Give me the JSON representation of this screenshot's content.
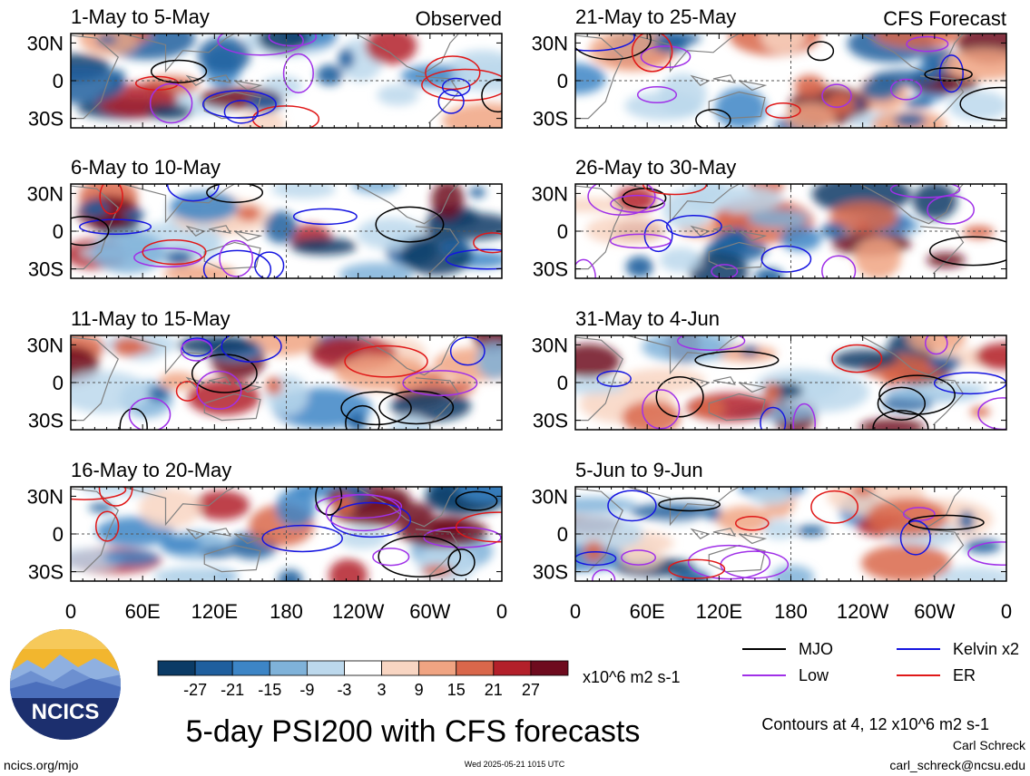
{
  "figure": {
    "main_title": "5-day PSI200 with CFS forecasts",
    "observed_label": "Observed",
    "forecast_label": "CFS Forecast",
    "url": "ncics.org/mjo",
    "timestamp": "Wed 2025-05-21 1015 UTC",
    "author": "Carl Schreck",
    "email": "carl_schreck@ncsu.edu",
    "contour_note": "Contours at 4, 12 x10^6 m2 s-1",
    "logo_text": "NCICS"
  },
  "colorbar": {
    "unit": "x10^6 m2 s-1",
    "ticks": [
      "-27",
      "-21",
      "-15",
      "-9",
      "-3",
      "3",
      "9",
      "15",
      "21",
      "27"
    ],
    "colors": [
      "#0b3b66",
      "#1f5f9e",
      "#3d85c6",
      "#7fb2d9",
      "#bcd8ec",
      "#ffffff",
      "#f8d5c2",
      "#f0a482",
      "#d9674b",
      "#b3202a",
      "#6e0b1e"
    ]
  },
  "legend": [
    {
      "label": "MJO",
      "color": "#000000"
    },
    {
      "label": "Kelvin x2",
      "color": "#1515e0"
    },
    {
      "label": "Low",
      "color": "#a030e8"
    },
    {
      "label": "ER",
      "color": "#e01818"
    }
  ],
  "chart_data": {
    "type": "heatmap",
    "variable": "5-day PSI200",
    "lat_ticks": [
      "30N",
      "0",
      "30S"
    ],
    "lon_ticks": [
      "0",
      "60E",
      "120E",
      "180",
      "120W",
      "60W",
      "0"
    ],
    "contour_levels": [
      4,
      12
    ],
    "panels": [
      {
        "column": "Observed",
        "label": "1-May to 5-May"
      },
      {
        "column": "Observed",
        "label": "6-May to 10-May"
      },
      {
        "column": "Observed",
        "label": "11-May to 15-May"
      },
      {
        "column": "Observed",
        "label": "16-May to 20-May"
      },
      {
        "column": "CFS Forecast",
        "label": "21-May to 25-May"
      },
      {
        "column": "CFS Forecast",
        "label": "26-May to 30-May"
      },
      {
        "column": "CFS Forecast",
        "label": "31-May to 4-Jun"
      },
      {
        "column": "CFS Forecast",
        "label": "5-Jun to 9-Jun"
      }
    ]
  }
}
